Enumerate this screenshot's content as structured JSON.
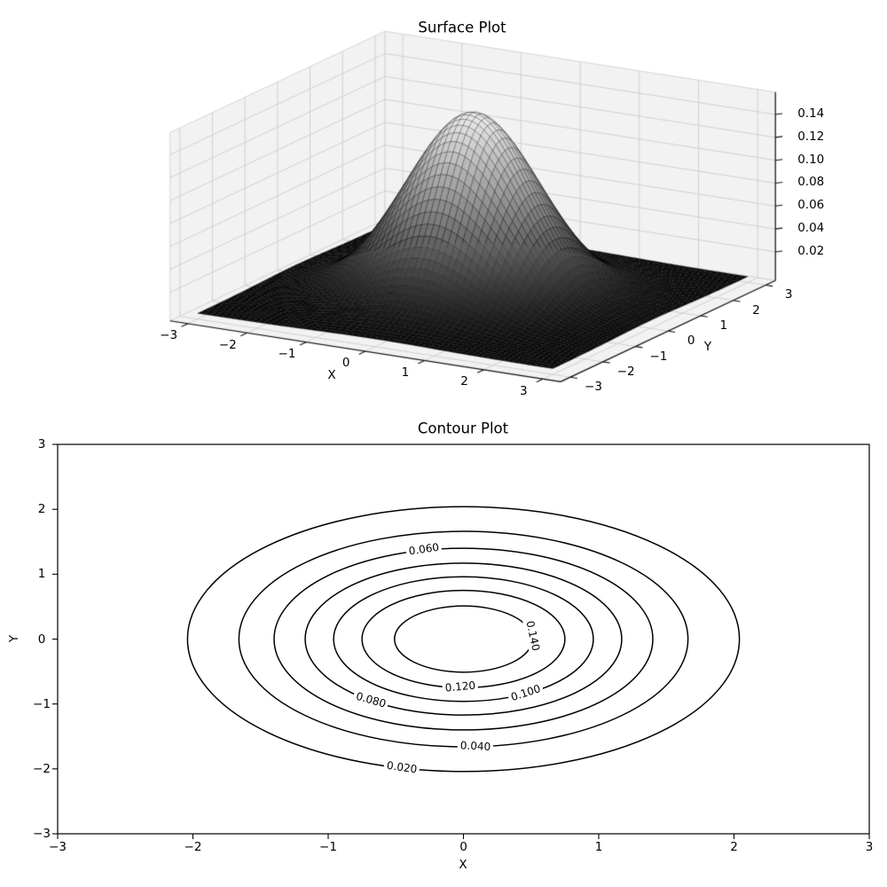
{
  "figure": {
    "background": "#ffffff",
    "text_color": "#000000"
  },
  "chart_data": [
    {
      "type": "surface",
      "title": "Surface Plot",
      "xlabel": "X",
      "ylabel": "Y",
      "x_range": [
        -3,
        3
      ],
      "y_range": [
        -3,
        3
      ],
      "grid_step": 0.1,
      "z_formula": "z = exp(-(x^2 + y^2)/2) / (2*pi)",
      "z_peak": 0.1592,
      "zlim": [
        0,
        0.16
      ],
      "xticks": [
        -3,
        -2,
        -1,
        0,
        1,
        2,
        3
      ],
      "xtick_labels": [
        "−3",
        "−2",
        "−1",
        "0",
        "1",
        "2",
        "3"
      ],
      "yticks": [
        -3,
        -2,
        -1,
        0,
        1,
        2,
        3
      ],
      "ytick_labels": [
        "−3",
        "−2",
        "−1",
        "0",
        "1",
        "2",
        "3"
      ],
      "zticks": [
        0.02,
        0.04,
        0.06,
        0.08,
        0.1,
        0.12,
        0.14
      ],
      "ztick_labels": [
        "0.02",
        "0.04",
        "0.06",
        "0.08",
        "0.10",
        "0.12",
        "0.14"
      ],
      "colormap": "gray",
      "surface_color_low": "#0a0a0a",
      "surface_color_high": "#ebebeb",
      "view": {
        "elev": 30,
        "azim": -60
      },
      "pane_color": "#f2f2f2",
      "grid_color": "#cdcdcd"
    },
    {
      "type": "contour",
      "title": "Contour Plot",
      "xlabel": "X",
      "ylabel": "Y",
      "xlim": [
        -3,
        3
      ],
      "ylim": [
        -3,
        3
      ],
      "xticks": [
        -3,
        -2,
        -1,
        0,
        1,
        2,
        3
      ],
      "xtick_labels": [
        "−3",
        "−2",
        "−1",
        "0",
        "1",
        "2",
        "3"
      ],
      "yticks": [
        -3,
        -2,
        -1,
        0,
        1,
        2,
        3
      ],
      "ytick_labels": [
        "−3",
        "−2",
        "−1",
        "0",
        "1",
        "2",
        "3"
      ],
      "center": [
        0,
        0
      ],
      "line_color": "#000000",
      "line_width": 1.5,
      "levels": [
        {
          "level": 0.02,
          "label": "0.020",
          "radius": 2.04,
          "label_angle_deg": 103,
          "label_rot_deg": 8
        },
        {
          "level": 0.04,
          "label": "0.040",
          "radius": 1.66,
          "label_angle_deg": 87,
          "label_rot_deg": 3
        },
        {
          "level": 0.06,
          "label": "0.060",
          "radius": 1.4,
          "label_angle_deg": 258,
          "label_rot_deg": -8
        },
        {
          "level": 0.08,
          "label": "0.080",
          "radius": 1.17,
          "label_angle_deg": 126,
          "label_rot_deg": 16
        },
        {
          "level": 0.1,
          "label": "0.100",
          "radius": 0.96,
          "label_angle_deg": 61,
          "label_rot_deg": -18
        },
        {
          "level": 0.12,
          "label": "0.120",
          "radius": 0.75,
          "label_angle_deg": 92,
          "label_rot_deg": -5
        },
        {
          "level": 0.14,
          "label": "0.140",
          "radius": 0.51,
          "label_angle_deg": 354,
          "label_rot_deg": 78
        }
      ]
    }
  ]
}
